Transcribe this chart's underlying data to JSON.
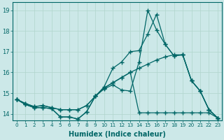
{
  "xlabel": "Humidex (Indice chaleur)",
  "xlim": [
    -0.5,
    23.5
  ],
  "ylim": [
    13.7,
    19.4
  ],
  "yticks": [
    14,
    15,
    16,
    17,
    18,
    19
  ],
  "xticks": [
    0,
    1,
    2,
    3,
    4,
    5,
    6,
    7,
    8,
    9,
    10,
    11,
    12,
    13,
    14,
    15,
    16,
    17,
    18,
    19,
    20,
    21,
    22,
    23
  ],
  "bg_color": "#cce8e8",
  "line_color": "#006666",
  "grid_color": "#b0d4cc",
  "lines": [
    {
      "x": [
        0,
        1,
        2,
        3,
        4,
        5,
        6,
        7,
        8,
        9,
        10,
        11,
        12,
        13,
        14,
        15,
        16,
        17,
        18,
        19,
        20,
        21,
        22,
        23
      ],
      "y": [
        14.7,
        14.45,
        14.3,
        14.3,
        14.25,
        13.85,
        13.85,
        13.75,
        14.1,
        14.85,
        15.2,
        15.4,
        15.15,
        15.1,
        16.5,
        19.0,
        18.05,
        17.35,
        16.8,
        16.85,
        15.6,
        15.1,
        14.2,
        13.8
      ]
    },
    {
      "x": [
        0,
        1,
        2,
        3,
        4,
        5,
        6,
        7,
        8,
        9,
        10,
        11,
        12,
        13,
        14,
        15,
        16,
        17,
        18,
        19,
        20,
        21,
        22,
        23
      ],
      "y": [
        14.7,
        14.45,
        14.3,
        14.3,
        14.25,
        13.85,
        13.85,
        13.75,
        14.1,
        14.85,
        15.3,
        16.2,
        16.5,
        17.0,
        17.05,
        17.85,
        18.8,
        17.35,
        16.8,
        16.85,
        15.6,
        15.1,
        14.2,
        13.8
      ]
    },
    {
      "x": [
        0,
        1,
        2,
        3,
        4,
        5,
        6,
        7,
        8,
        9,
        10,
        11,
        12,
        13,
        14,
        15,
        16,
        17,
        18,
        19,
        20,
        21,
        22,
        23
      ],
      "y": [
        14.7,
        14.5,
        14.35,
        14.4,
        14.3,
        14.2,
        14.2,
        14.2,
        14.4,
        14.85,
        15.25,
        15.5,
        15.75,
        16.0,
        16.2,
        16.4,
        16.6,
        16.75,
        16.85,
        16.85,
        15.6,
        15.1,
        14.2,
        13.8
      ]
    },
    {
      "x": [
        0,
        1,
        2,
        3,
        4,
        5,
        6,
        7,
        8,
        9,
        10,
        11,
        12,
        13,
        14,
        15,
        16,
        17,
        18,
        19,
        20,
        21,
        22,
        23
      ],
      "y": [
        14.7,
        14.5,
        14.35,
        14.4,
        14.3,
        14.2,
        14.2,
        14.2,
        14.4,
        14.85,
        15.25,
        15.5,
        15.75,
        16.0,
        14.05,
        14.05,
        14.05,
        14.05,
        14.05,
        14.05,
        14.05,
        14.05,
        14.05,
        13.8
      ]
    }
  ]
}
